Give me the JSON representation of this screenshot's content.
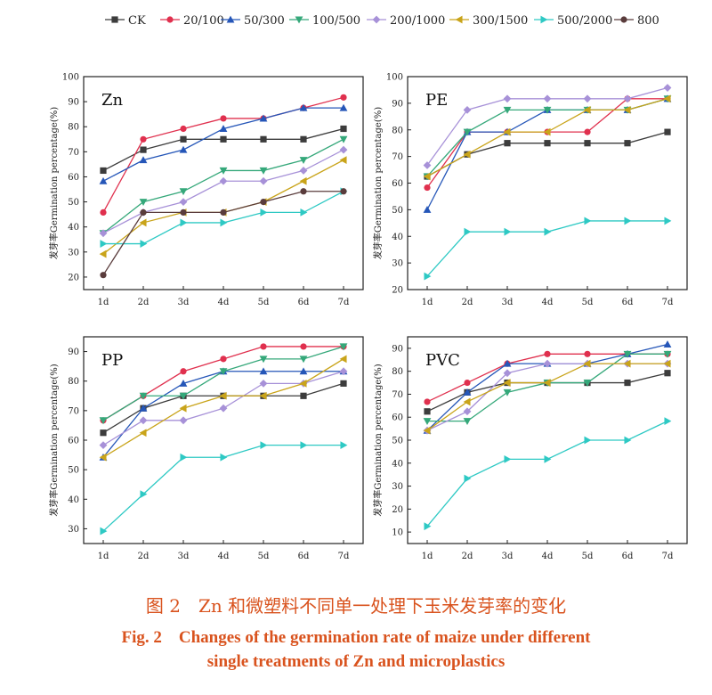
{
  "legend_order": [
    "CK",
    "20/100",
    "50/300",
    "100/500",
    "200/1000",
    "300/1500",
    "500/2000",
    "800"
  ],
  "series_styles": {
    "CK": {
      "color": "#3c3c3c",
      "marker": "square"
    },
    "20/100": {
      "color": "#e0304e",
      "marker": "circle"
    },
    "50/300": {
      "color": "#2556b8",
      "marker": "triangle-up"
    },
    "100/500": {
      "color": "#35a87a",
      "marker": "triangle-down"
    },
    "200/1000": {
      "color": "#a791d8",
      "marker": "diamond"
    },
    "300/1500": {
      "color": "#c9a41a",
      "marker": "triangle-left"
    },
    "500/2000": {
      "color": "#2ec9c4",
      "marker": "triangle-right"
    },
    "800": {
      "color": "#5a3c3c",
      "marker": "circle"
    }
  },
  "chart_data": [
    {
      "type": "line",
      "title": "Zn",
      "ylabel": "发芽率Germination percentage(%)",
      "categories": [
        "1d",
        "2d",
        "3d",
        "4d",
        "5d",
        "6d",
        "7d"
      ],
      "ylim": [
        15,
        100
      ],
      "yticks": [
        20,
        30,
        40,
        50,
        60,
        70,
        80,
        90,
        100
      ],
      "series": [
        {
          "name": "CK",
          "values": [
            62.5,
            70.8,
            75,
            75,
            75,
            75,
            79.2
          ]
        },
        {
          "name": "20/100",
          "values": [
            45.8,
            75,
            79.2,
            83.3,
            83.3,
            87.5,
            91.7
          ]
        },
        {
          "name": "50/300",
          "values": [
            58.3,
            66.7,
            70.8,
            79.2,
            83.3,
            87.5,
            87.5
          ]
        },
        {
          "name": "100/500",
          "values": [
            37.5,
            50,
            54.2,
            62.5,
            62.5,
            66.7,
            75
          ]
        },
        {
          "name": "200/1000",
          "values": [
            37.5,
            45.8,
            50,
            58.3,
            58.3,
            62.5,
            70.8
          ]
        },
        {
          "name": "300/1500",
          "values": [
            29.2,
            41.7,
            45.8,
            45.8,
            50,
            58.3,
            66.7
          ]
        },
        {
          "name": "500/2000",
          "values": [
            33.3,
            33.3,
            41.7,
            41.7,
            45.8,
            45.8,
            54.2
          ]
        },
        {
          "name": "800",
          "values": [
            20.8,
            45.8,
            45.8,
            45.8,
            50,
            54.2,
            54.2
          ]
        }
      ]
    },
    {
      "type": "line",
      "title": "PE",
      "ylabel": "发芽率Germination percentage(%)",
      "categories": [
        "1d",
        "2d",
        "3d",
        "4d",
        "5d",
        "6d",
        "7d"
      ],
      "ylim": [
        20,
        100
      ],
      "yticks": [
        20,
        30,
        40,
        50,
        60,
        70,
        80,
        90,
        100
      ],
      "series": [
        {
          "name": "CK",
          "values": [
            62.5,
            70.8,
            75,
            75,
            75,
            75,
            79.2
          ]
        },
        {
          "name": "20/100",
          "values": [
            58.3,
            79.2,
            79.2,
            79.2,
            79.2,
            91.7,
            91.7
          ]
        },
        {
          "name": "50/300",
          "values": [
            50,
            79.2,
            79.2,
            87.5,
            87.5,
            87.5,
            91.7
          ]
        },
        {
          "name": "100/500",
          "values": [
            62.5,
            79.2,
            87.5,
            87.5,
            87.5,
            87.5,
            91.7
          ]
        },
        {
          "name": "200/1000",
          "values": [
            66.7,
            87.5,
            91.7,
            91.7,
            91.7,
            91.7,
            95.8
          ]
        },
        {
          "name": "300/1500",
          "values": [
            62.5,
            70.8,
            79.2,
            79.2,
            87.5,
            87.5,
            91.7
          ]
        },
        {
          "name": "500/2000",
          "values": [
            25,
            41.7,
            41.7,
            41.7,
            45.8,
            45.8,
            45.8
          ]
        }
      ]
    },
    {
      "type": "line",
      "title": "PP",
      "ylabel": "发芽率Germination percentage(%)",
      "categories": [
        "1d",
        "2d",
        "3d",
        "4d",
        "5d",
        "6d",
        "7d"
      ],
      "ylim": [
        25,
        95
      ],
      "yticks": [
        30,
        40,
        50,
        60,
        70,
        80,
        90
      ],
      "series": [
        {
          "name": "CK",
          "values": [
            62.5,
            70.8,
            75,
            75,
            75,
            75,
            79.2
          ]
        },
        {
          "name": "20/100",
          "values": [
            66.7,
            75,
            83.3,
            87.5,
            91.7,
            91.7,
            91.7
          ]
        },
        {
          "name": "50/300",
          "values": [
            54.2,
            70.8,
            79.2,
            83.3,
            83.3,
            83.3,
            83.3
          ]
        },
        {
          "name": "100/500",
          "values": [
            66.7,
            75,
            75,
            83.3,
            87.5,
            87.5,
            91.7
          ]
        },
        {
          "name": "200/1000",
          "values": [
            58.3,
            66.7,
            66.7,
            70.8,
            79.2,
            79.2,
            83.3
          ]
        },
        {
          "name": "300/1500",
          "values": [
            54.2,
            62.5,
            70.8,
            75,
            75,
            79.2,
            87.5
          ]
        },
        {
          "name": "500/2000",
          "values": [
            29.2,
            41.7,
            54.2,
            54.2,
            58.3,
            58.3,
            58.3
          ]
        }
      ]
    },
    {
      "type": "line",
      "title": "PVC",
      "ylabel": "发芽率Germination percentage(%)",
      "categories": [
        "1d",
        "2d",
        "3d",
        "4d",
        "5d",
        "6d",
        "7d"
      ],
      "ylim": [
        5,
        95
      ],
      "yticks": [
        10,
        20,
        30,
        40,
        50,
        60,
        70,
        80,
        90
      ],
      "series": [
        {
          "name": "CK",
          "values": [
            62.5,
            70.8,
            75,
            75,
            75,
            75,
            79.2
          ]
        },
        {
          "name": "20/100",
          "values": [
            66.7,
            75,
            83.3,
            87.5,
            87.5,
            87.5,
            87.5
          ]
        },
        {
          "name": "50/300",
          "values": [
            54.2,
            70.8,
            83.3,
            83.3,
            83.3,
            87.5,
            91.7
          ]
        },
        {
          "name": "100/500",
          "values": [
            58.3,
            58.3,
            70.8,
            75,
            75,
            87.5,
            87.5
          ]
        },
        {
          "name": "200/1000",
          "values": [
            54.2,
            62.5,
            79.2,
            83.3,
            83.3,
            83.3,
            83.3
          ]
        },
        {
          "name": "300/1500",
          "values": [
            54.2,
            66.7,
            75,
            75,
            83.3,
            83.3,
            83.3
          ]
        },
        {
          "name": "500/2000",
          "values": [
            12.5,
            33.3,
            41.7,
            41.7,
            50,
            50,
            58.3
          ]
        }
      ]
    }
  ],
  "caption": {
    "zh": "图 2　Zn 和微塑料不同单一处理下玉米发芽率的变化",
    "en_line1": "Fig. 2　Changes of the germination rate of maize under different",
    "en_line2": "single treatments of Zn and microplastics"
  }
}
